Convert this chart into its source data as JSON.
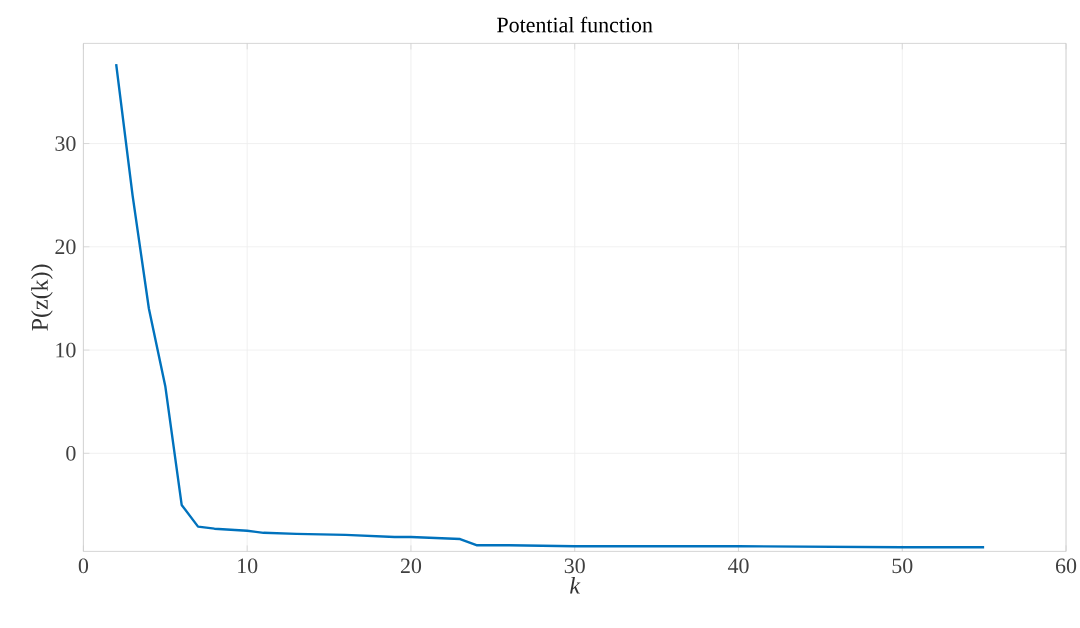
{
  "chart_data": {
    "type": "line",
    "title": "Potential function",
    "xlabel": "k",
    "ylabel": "P(z(k))",
    "x": [
      2,
      3,
      4,
      5,
      6,
      7,
      8,
      10,
      11,
      13,
      16,
      19,
      20,
      23,
      24,
      26,
      30,
      40,
      50,
      55
    ],
    "series": [
      {
        "color": "#0072bd",
        "values": [
          37.7,
          25,
          14,
          6.5,
          -5,
          -7.1,
          -7.3,
          -7.5,
          -7.7,
          -7.8,
          -7.9,
          -8.1,
          -8.1,
          -8.3,
          -8.9,
          -8.9,
          -9.0,
          -9.0,
          -9.1,
          -9.1
        ]
      }
    ],
    "xlim": [
      0,
      60
    ],
    "ylim": [
      -9.5,
      39.7
    ],
    "xticks": [
      0,
      10,
      20,
      30,
      40,
      50,
      60
    ],
    "yticks": [
      0,
      10,
      20,
      30
    ],
    "grid": true,
    "marker": "none",
    "line_style": "solid"
  }
}
